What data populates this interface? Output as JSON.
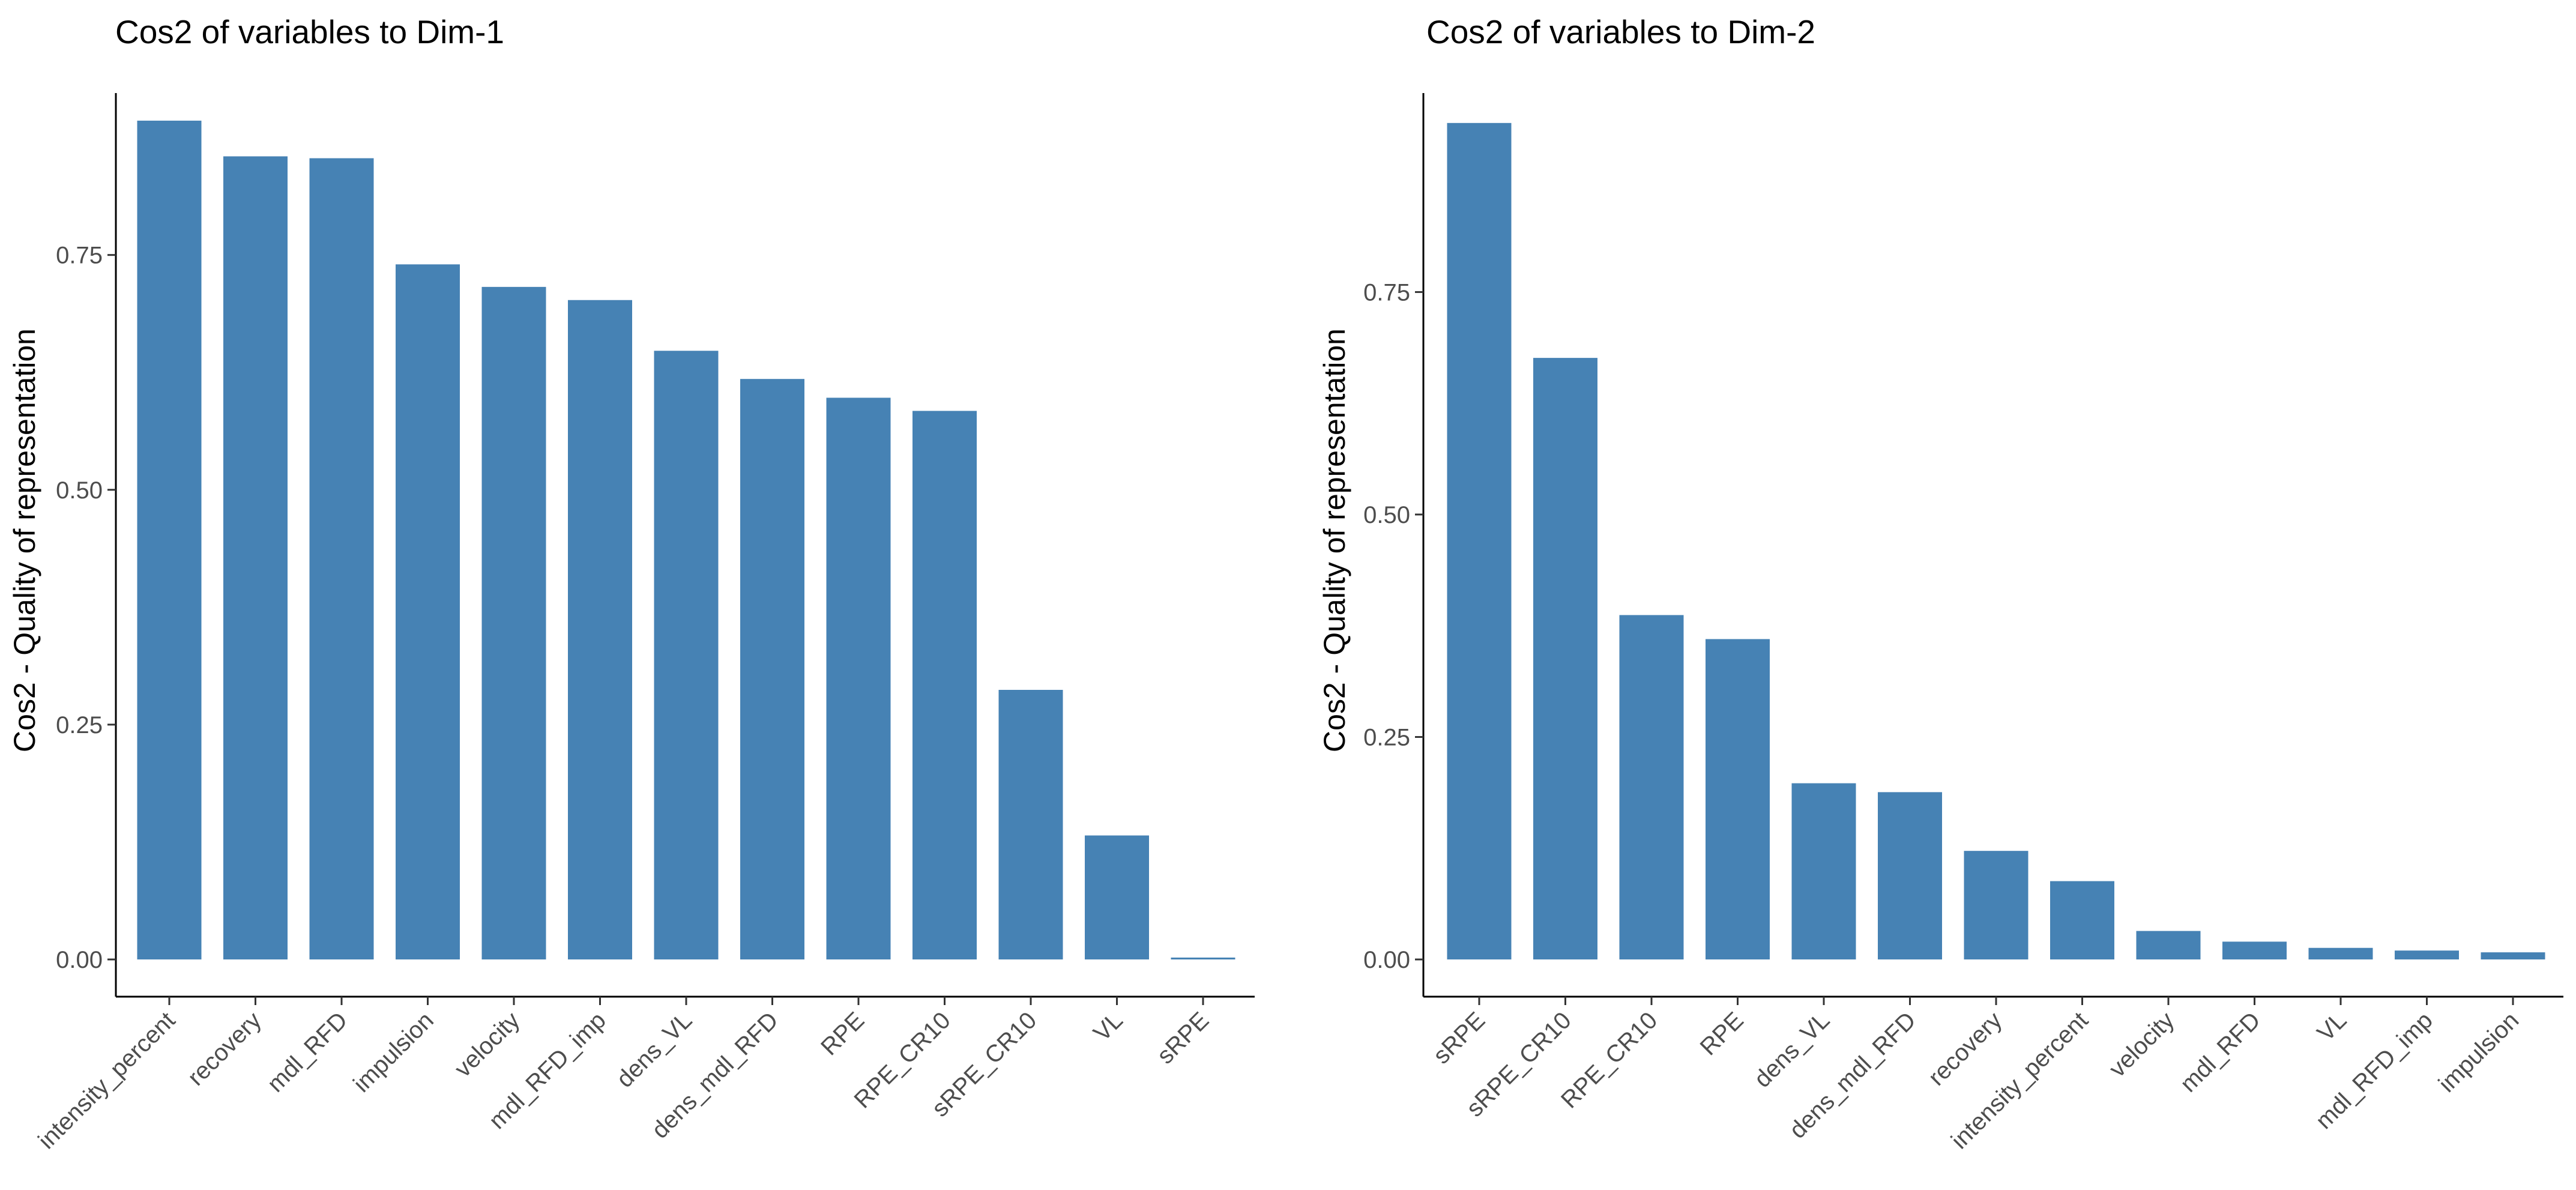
{
  "chart_data": [
    {
      "type": "bar",
      "title": "Cos2 of variables to Dim-1",
      "xlabel": "",
      "ylabel": "Cos2 - Quality of representation",
      "categories": [
        "intensity_percent",
        "recovery",
        "mdl_RFD",
        "impulsion",
        "velocity",
        "mdl_RFD_imp",
        "dens_VL",
        "dens_mdl_RFD",
        "RPE",
        "RPE_CR10",
        "sRPE_CR10",
        "VL",
        "sRPE"
      ],
      "values": [
        0.893,
        0.855,
        0.853,
        0.74,
        0.716,
        0.702,
        0.648,
        0.618,
        0.598,
        0.584,
        0.287,
        0.132,
        0.002
      ],
      "ylim": [
        0,
        0.9
      ],
      "yticks": [
        0.0,
        0.25,
        0.5,
        0.75
      ],
      "ytick_labels": [
        "0.00",
        "0.25",
        "0.50",
        "0.75"
      ],
      "bar_color": "#4682B4",
      "grid": false
    },
    {
      "type": "bar",
      "title": "Cos2 of variables to Dim-2",
      "xlabel": "",
      "ylabel": "Cos2 - Quality of representation",
      "categories": [
        "sRPE",
        "sRPE_CR10",
        "RPE_CR10",
        "RPE",
        "dens_VL",
        "dens_mdl_RFD",
        "recovery",
        "intensity_percent",
        "velocity",
        "mdl_RFD",
        "VL",
        "mdl_RFD_imp",
        "impulsion"
      ],
      "values": [
        0.94,
        0.676,
        0.387,
        0.36,
        0.198,
        0.188,
        0.122,
        0.088,
        0.032,
        0.02,
        0.013,
        0.01,
        0.008
      ],
      "ylim": [
        0,
        0.95
      ],
      "yticks": [
        0.0,
        0.25,
        0.5,
        0.75
      ],
      "ytick_labels": [
        "0.00",
        "0.25",
        "0.50",
        "0.75"
      ],
      "bar_color": "#4682B4",
      "grid": false
    }
  ]
}
